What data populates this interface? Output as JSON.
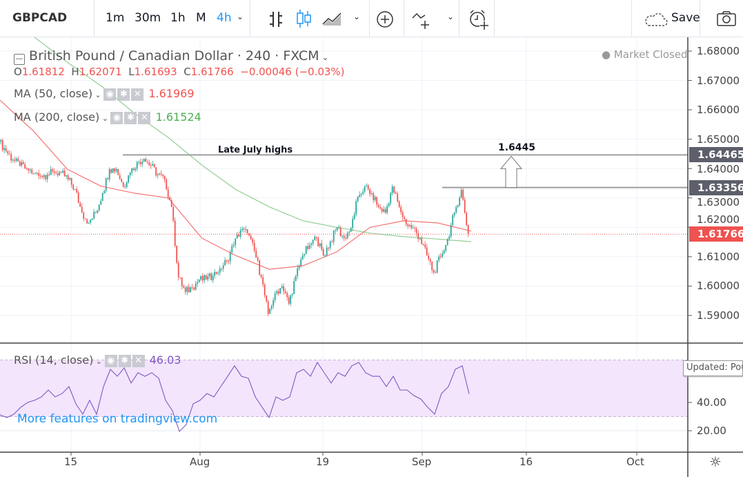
{
  "toolbar": {
    "symbol": "GBPCAD",
    "intervals": [
      "1m",
      "30m",
      "1h",
      "M",
      "4h"
    ],
    "active_interval": "4h",
    "save_label": "Save",
    "icons": [
      "bar-chart-icon",
      "candles-icon",
      "area-chart-icon",
      "compare-add-icon",
      "indicators-icon",
      "alert-icon",
      "cloud-icon",
      "camera-icon"
    ]
  },
  "legend": {
    "title": "British Pound / Canadian Dollar · 240 · FXCM",
    "o_label": "O",
    "o": "1.61812",
    "h_label": "H",
    "h": "1.62071",
    "l_label": "L",
    "l": "1.61693",
    "c_label": "C",
    "c": "1.61766",
    "change": "−0.00046 (−0.03%)",
    "ma50_label": "MA (50, close)",
    "ma50_value": "1.61969",
    "ma200_label": "MA (200, close)",
    "ma200_value": "1.61524",
    "market_status": "Market Closed"
  },
  "annotations": {
    "late_july_label": "Late July highs",
    "target_label": "1.6445"
  },
  "rsi_legend": {
    "label": "RSI (14, close)",
    "value": "46.03"
  },
  "watermark": "More features on tradingview.com",
  "tooltip": "Updated: Pou",
  "colors": {
    "up": "#26a69a",
    "down": "#ef5350",
    "ma50": "#ef5350",
    "ma200": "#4caf50",
    "rsi": "#7e57c2",
    "accent": "#2196f3",
    "rsi_band": "#f3e5fc"
  },
  "chart_data": [
    {
      "type": "candlestick",
      "title": "British Pound / Canadian Dollar · 240 · FXCM",
      "ylim": [
        1.585,
        1.685
      ],
      "price_ticks": [
        "1.68000",
        "1.67000",
        "1.66000",
        "1.65000",
        "1.64000",
        "1.63000",
        "1.62000",
        "1.61000",
        "1.60000",
        "1.59000"
      ],
      "x_ticks": [
        "15",
        "Aug",
        "19",
        "Sep",
        "16",
        "Oct"
      ],
      "grid": true,
      "closes": [
        1.6492,
        1.646,
        1.643,
        1.641,
        1.64,
        1.6385,
        1.6375,
        1.638,
        1.6386,
        1.6386,
        1.6363,
        1.633,
        1.625,
        1.6216,
        1.625,
        1.6316,
        1.6398,
        1.6398,
        1.6339,
        1.6386,
        1.6422,
        1.6433,
        1.641,
        1.638,
        1.6363,
        1.6269,
        1.603,
        1.598,
        1.5995,
        1.6022,
        1.6022,
        1.6035,
        1.606,
        1.6085,
        1.614,
        1.619,
        1.618,
        1.612,
        1.603,
        1.5905,
        1.5975,
        1.5999,
        1.594,
        1.6034,
        1.6104,
        1.614,
        1.6163,
        1.6104,
        1.6151,
        1.6198,
        1.6163,
        1.6198,
        1.6304,
        1.6339,
        1.6316,
        1.6269,
        1.625,
        1.6339,
        1.6269,
        1.621,
        1.6198,
        1.6163,
        1.6104,
        1.6046,
        1.61,
        1.616,
        1.625,
        1.6328,
        1.6177
      ],
      "ma50": [
        1.6633,
        1.6527,
        1.6398,
        1.634,
        1.6316,
        1.63,
        1.6163,
        1.6104,
        1.6057,
        1.6069,
        1.6116,
        1.62,
        1.6222,
        1.6215,
        1.6187
      ],
      "ma200": [
        1.69,
        1.676,
        1.668,
        1.6586,
        1.6504,
        1.641,
        1.6328,
        1.6269,
        1.6222,
        1.62,
        1.618,
        1.6168,
        1.616,
        1.6151
      ],
      "last_price": "1.61766",
      "levels": [
        {
          "value": "1.64465",
          "label": "Late July highs"
        },
        {
          "value": "1.63356",
          "label": ""
        }
      ]
    },
    {
      "type": "line",
      "title": "RSI (14, close)",
      "ylim": [
        10,
        80
      ],
      "band": [
        30,
        70
      ],
      "y_ticks": [
        "40.00",
        "20.00"
      ],
      "values": [
        31.2,
        29.3,
        31.7,
        36.6,
        40,
        41.5,
        43.9,
        48.8,
        43.9,
        46.3,
        51.2,
        39,
        31.7,
        41.5,
        31.7,
        51.2,
        63.4,
        58.5,
        64.4,
        53.7,
        61,
        58.5,
        61,
        57.1,
        41.5,
        34.1,
        19.5,
        24.4,
        39,
        41.5,
        46.3,
        43.9,
        51.2,
        58.5,
        65.9,
        58.5,
        57.1,
        43.9,
        36.6,
        29.3,
        43.9,
        41.5,
        43.9,
        61,
        63.4,
        58.5,
        68.3,
        61,
        53.7,
        61,
        58.5,
        65.9,
        68.3,
        61,
        58.5,
        58.5,
        51.2,
        58.5,
        48.8,
        48.8,
        44.9,
        42.4,
        36.6,
        31.7,
        46.3,
        51.2,
        63.4,
        65.9,
        46.03
      ]
    }
  ]
}
